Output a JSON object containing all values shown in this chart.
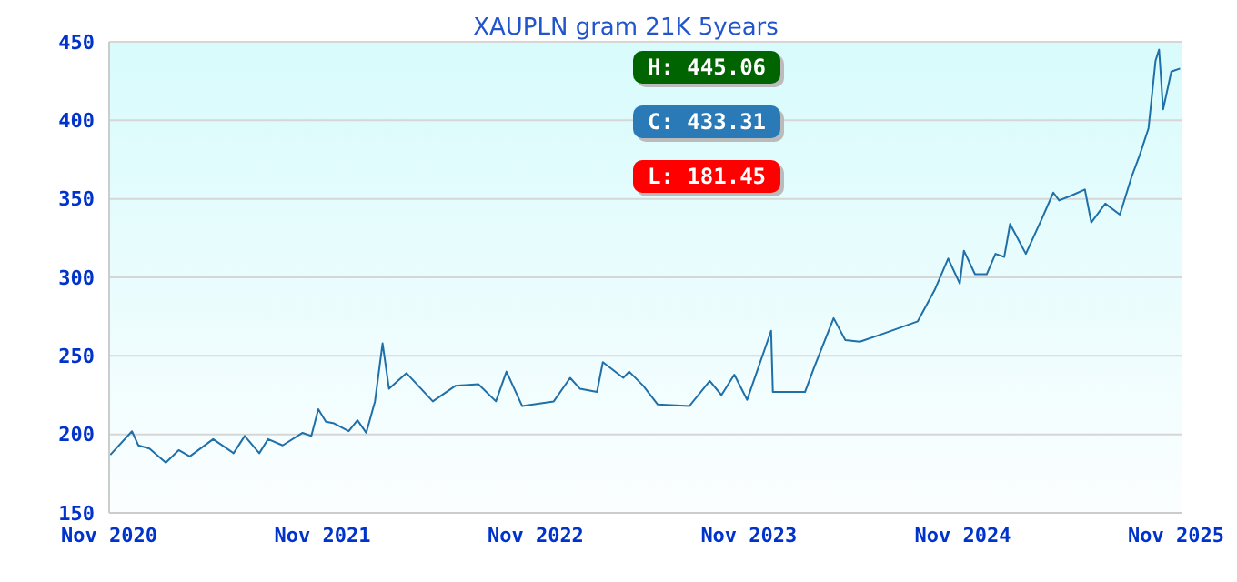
{
  "chart_data": {
    "type": "line",
    "title": "XAUPLN gram 21K 5years",
    "x": [
      "2020-11-03",
      "2020-12-10",
      "2020-12-21",
      "2021-01-09",
      "2021-02-06",
      "2021-02-28",
      "2021-03-19",
      "2021-04-28",
      "2021-06-02",
      "2021-06-21",
      "2021-07-16",
      "2021-07-31",
      "2021-08-25",
      "2021-09-28",
      "2021-10-13",
      "2021-10-25",
      "2021-11-07",
      "2021-11-21",
      "2021-12-16",
      "2021-12-31",
      "2022-01-15",
      "2022-01-30",
      "2022-02-12",
      "2022-02-23",
      "2022-03-25",
      "2022-05-09",
      "2022-06-17",
      "2022-07-26",
      "2022-08-25",
      "2022-09-12",
      "2022-10-09",
      "2022-12-02",
      "2022-12-30",
      "2023-01-16",
      "2023-02-14",
      "2023-02-24",
      "2023-03-31",
      "2023-04-10",
      "2023-05-04",
      "2023-05-29",
      "2023-07-22",
      "2023-08-26",
      "2023-09-15",
      "2023-10-07",
      "2023-10-29",
      "2023-12-09",
      "2023-12-12",
      "2024-02-05",
      "2024-02-20",
      "2024-03-25",
      "2024-04-14",
      "2024-05-09",
      "2024-06-17",
      "2024-08-16",
      "2024-09-14",
      "2024-10-07",
      "2024-10-27",
      "2024-11-03",
      "2024-11-22",
      "2024-12-12",
      "2024-12-27",
      "2025-01-11",
      "2025-01-21",
      "2025-02-17",
      "2025-03-16",
      "2025-04-05",
      "2025-04-15",
      "2025-05-05",
      "2025-05-29",
      "2025-06-09",
      "2025-07-03",
      "2025-07-28",
      "2025-08-17",
      "2025-08-31",
      "2025-09-15",
      "2025-09-27",
      "2025-10-03",
      "2025-10-10",
      "2025-10-24",
      "2025-11-08"
    ],
    "series": [
      {
        "color": "#1f6fa8",
        "values": [
          187,
          202,
          193,
          191,
          182,
          190,
          186,
          197,
          188,
          199,
          188,
          197,
          193,
          201,
          199,
          216,
          208,
          207,
          202,
          209,
          201,
          221,
          258,
          229,
          239,
          221,
          231,
          232,
          221,
          240,
          218,
          221,
          236,
          229,
          227,
          246,
          236,
          240,
          231,
          219,
          218,
          234,
          225,
          238,
          222,
          266,
          227,
          227,
          242,
          274,
          260,
          259,
          264,
          272,
          292,
          312,
          296,
          317,
          302,
          302,
          315,
          313,
          334,
          315,
          337,
          354,
          349,
          352,
          356,
          335,
          347,
          340,
          364,
          378,
          395,
          438,
          445,
          407,
          431,
          433
        ]
      }
    ],
    "xlim": [
      "2020-11-01",
      "2025-11-12"
    ],
    "xticks": [
      {
        "value": "2020-11-01",
        "label": "Nov 2020"
      },
      {
        "value": "2021-11-01",
        "label": "Nov 2021"
      },
      {
        "value": "2022-11-01",
        "label": "Nov 2022"
      },
      {
        "value": "2023-11-01",
        "label": "Nov 2023"
      },
      {
        "value": "2024-11-01",
        "label": "Nov 2024"
      },
      {
        "value": "2025-11-01",
        "label": "Nov 2025"
      }
    ],
    "ylim": [
      150,
      450
    ],
    "yticks": [
      150,
      200,
      250,
      300,
      350,
      400,
      450
    ],
    "grid": "y",
    "marker": "none",
    "line_style": "solid",
    "annotations": [
      "H: 445.06",
      "C: 433.31",
      "L: 181.45"
    ]
  }
}
